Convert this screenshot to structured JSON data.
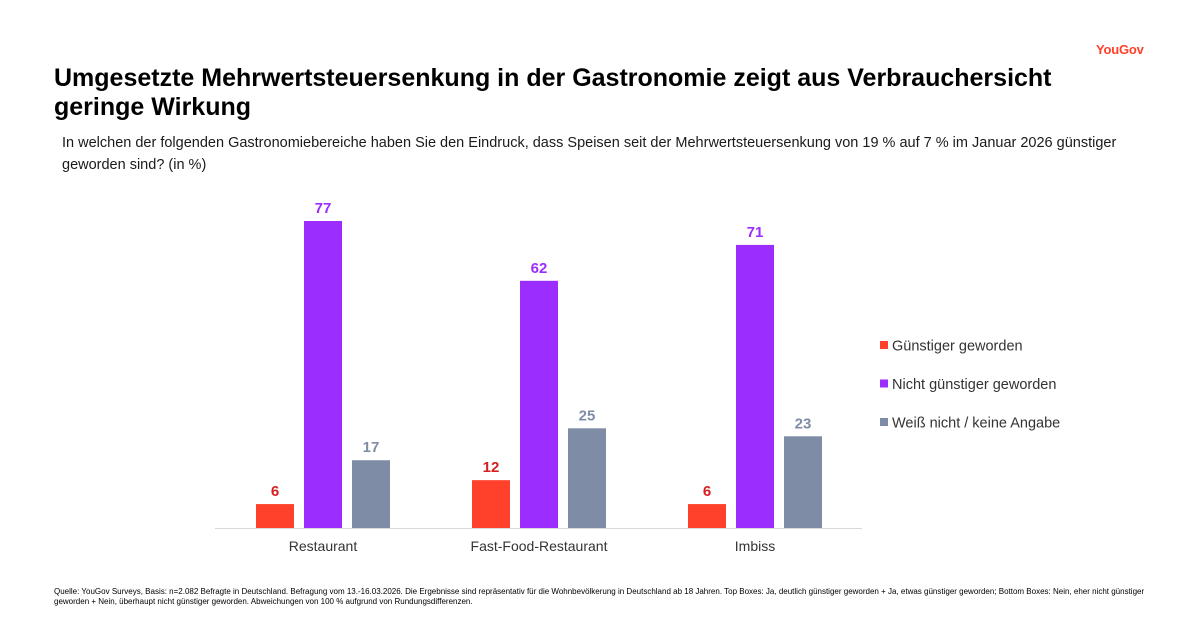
{
  "brand": {
    "logo_text": "YouGov",
    "accent": "#ff412c"
  },
  "title": "Umgesetzte Mehrwertsteuersenkung in der Gastronomie zeigt aus Verbrauchersicht geringe Wirkung",
  "subtitle": "In welchen der folgenden Gastronomiebereiche haben Sie den Eindruck, dass Speisen seit der Mehrwertsteuersenkung von 19 % auf 7 % im Januar 2026 günstiger geworden sind? (in %)",
  "footer": "Quelle: YouGov Surveys, Basis: n=2.082 Befragte in Deutschland. Befragung vom 13.-16.03.2026. Die Ergebnisse sind repräsentativ für die Wohnbevölkerung in Deutschland ab 18 Jahren. Top Boxes: Ja, deutlich günstiger geworden + Ja, etwas günstiger geworden; Bottom Boxes: Nein, eher nicht günstiger geworden + Nein, überhaupt nicht günstiger geworden. Abweichungen von 100 % aufgrund von Rundungsdifferenzen.",
  "chart_data": {
    "type": "bar",
    "categories": [
      "Restaurant",
      "Fast-Food-Restaurant",
      "Imbiss"
    ],
    "series": [
      {
        "name": "Günstiger geworden",
        "color": "#ff412c",
        "values": [
          6,
          12,
          6
        ]
      },
      {
        "name": "Nicht günstiger geworden",
        "color": "#9b2dff",
        "values": [
          77,
          62,
          71
        ]
      },
      {
        "name": "Weiß nicht / keine Angabe",
        "color": "#7f8ca6",
        "values": [
          17,
          25,
          23
        ]
      }
    ],
    "label_colors": [
      "#d61f1f",
      "#9b2dff",
      "#7f8ca6"
    ],
    "ylim": [
      0,
      80
    ],
    "grid": false,
    "legend": "right"
  }
}
